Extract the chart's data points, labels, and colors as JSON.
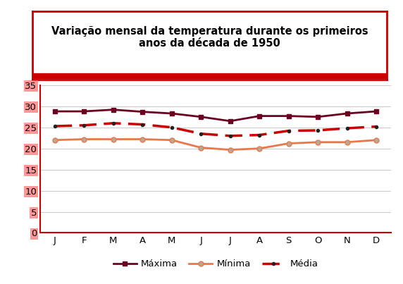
{
  "months": [
    "J",
    "F",
    "M",
    "A",
    "M",
    "J",
    "J",
    "A",
    "S",
    "O",
    "N",
    "D"
  ],
  "maxima": [
    28.8,
    28.8,
    29.2,
    28.7,
    28.3,
    27.5,
    26.5,
    27.7,
    27.7,
    27.5,
    28.3,
    28.8
  ],
  "minima": [
    22.0,
    22.2,
    22.2,
    22.2,
    22.0,
    20.2,
    19.7,
    20.0,
    21.2,
    21.5,
    21.5,
    22.0
  ],
  "media": [
    25.3,
    25.5,
    26.0,
    25.7,
    25.0,
    23.5,
    23.0,
    23.2,
    24.2,
    24.3,
    24.8,
    25.2
  ],
  "ylim": [
    0,
    35
  ],
  "yticks": [
    0,
    5,
    10,
    15,
    20,
    25,
    30,
    35
  ],
  "title_line1": "Variação mensal da temperatura durante os primeiros",
  "title_line2": "anos da década de 1950",
  "color_maxima": "#6B0020",
  "color_minima": "#E8784A",
  "color_media": "#CC0000",
  "legend_labels": [
    "Máxima",
    "Mínima",
    "Média"
  ],
  "bg_color": "#FFFFFF",
  "title_box_bg": "#FFFFFF",
  "title_box_border": "#CC0000",
  "grid_color": "#CCCCCC",
  "spine_color": "#CC0000"
}
